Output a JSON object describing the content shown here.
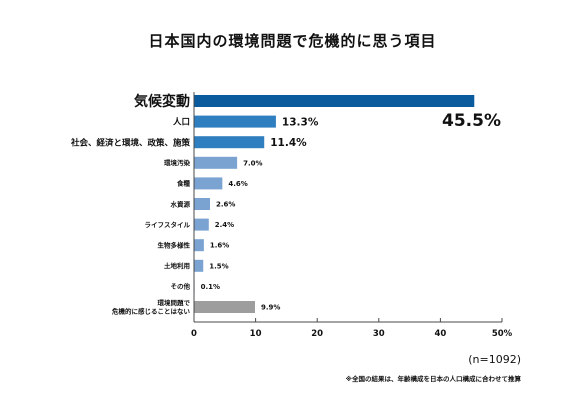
{
  "chart_data": {
    "type": "bar",
    "orientation": "horizontal",
    "title": "日本国内の環境問題で危機的に思う項目",
    "categories": [
      "気候変動",
      "人口",
      "社会、経済と環境、政策、施策",
      "環境汚染",
      "食糧",
      "水資源",
      "ライフスタイル",
      "生物多様性",
      "土地利用",
      "その他",
      "環境問題で 危機的に感じることはない"
    ],
    "values": [
      45.5,
      13.3,
      11.4,
      7.0,
      4.6,
      2.6,
      2.4,
      1.6,
      1.5,
      0.1,
      9.9
    ],
    "value_labels": [
      "45.5%",
      "13.3%",
      "11.4%",
      "7.0%",
      "4.6%",
      "2.6%",
      "2.4%",
      "1.6%",
      "1.5%",
      "0.1%",
      "9.9%"
    ],
    "xlim": [
      0,
      50
    ],
    "x_ticks": [
      "0",
      "10",
      "20",
      "30",
      "40",
      "50%"
    ],
    "grid": false,
    "colors": {
      "top1": "#0a5a9e",
      "top2": "#2f7fc0",
      "rest": "#7aa3d2",
      "none": "#9d9d9d",
      "axis": "#4a4a4a"
    }
  },
  "notes": {
    "sample": "(n=1092)",
    "footnote": "※全国の結果は、年齢構成を日本の人口構成に合わせて推算"
  }
}
